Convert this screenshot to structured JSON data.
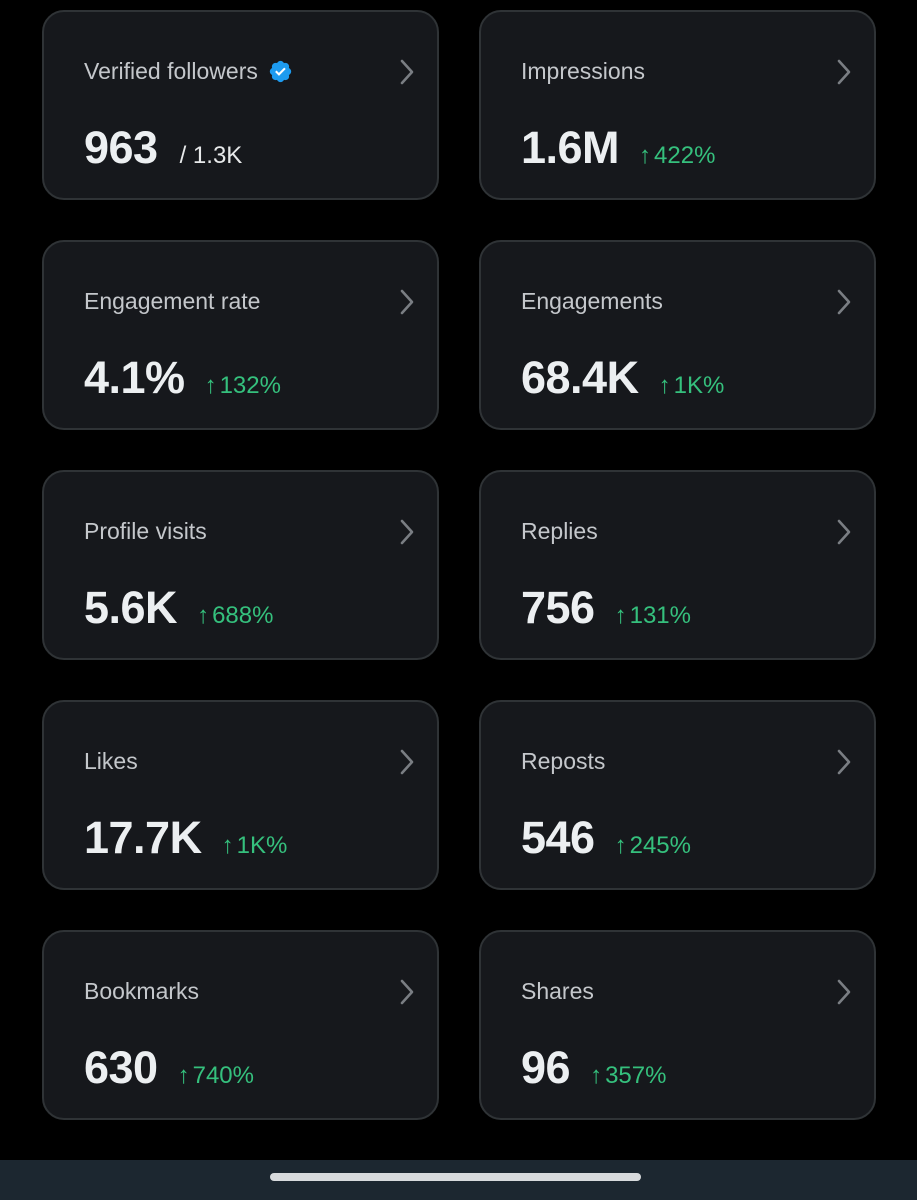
{
  "cards": [
    {
      "title": "Verified followers",
      "value": "963",
      "total": "/ 1.3K",
      "verified": true
    },
    {
      "title": "Impressions",
      "value": "1.6M",
      "change": "422%"
    },
    {
      "title": "Engagement rate",
      "value": "4.1%",
      "change": "132%"
    },
    {
      "title": "Engagements",
      "value": "68.4K",
      "change": "1K%"
    },
    {
      "title": "Profile visits",
      "value": "5.6K",
      "change": "688%"
    },
    {
      "title": "Replies",
      "value": "756",
      "change": "131%"
    },
    {
      "title": "Likes",
      "value": "17.7K",
      "change": "1K%"
    },
    {
      "title": "Reposts",
      "value": "546",
      "change": "245%"
    },
    {
      "title": "Bookmarks",
      "value": "630",
      "change": "740%"
    },
    {
      "title": "Shares",
      "value": "96",
      "change": "357%"
    }
  ],
  "icons": {
    "arrow": "↑",
    "chevron": "chevron-right-icon",
    "verified": "verified-badge-icon"
  },
  "colors": {
    "positive": "#35c07d",
    "verified": "#1d9bf0"
  }
}
